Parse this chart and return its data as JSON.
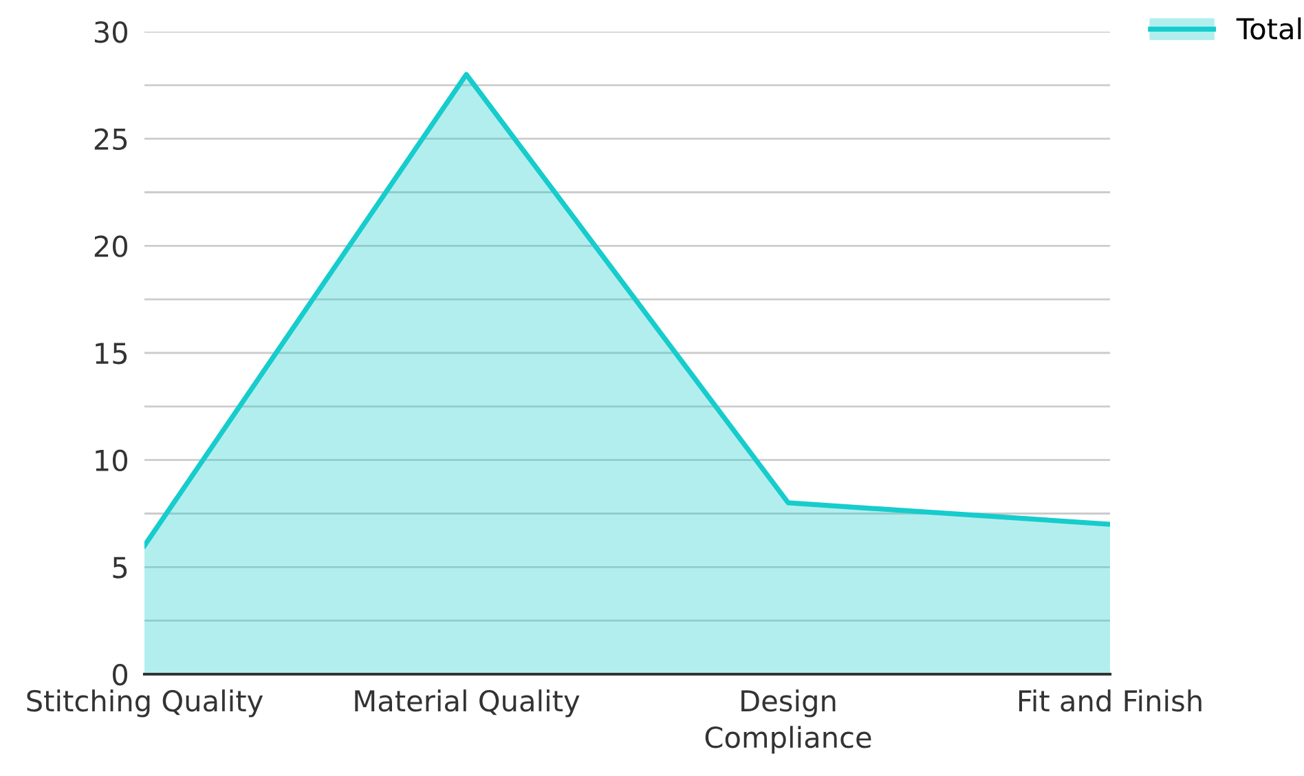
{
  "chart_data": {
    "type": "area",
    "categories": [
      "Stitching Quality",
      "Material Quality",
      "Design\nCompliance",
      "Fit and Finish"
    ],
    "series": [
      {
        "name": "Total",
        "color": "#17cccc",
        "values": [
          6,
          28,
          8,
          7
        ]
      }
    ],
    "ylim": [
      0,
      30
    ],
    "yticks": [
      0,
      {
        "value": 2.5,
        "label": null
      },
      5,
      {
        "value": 7.5,
        "label": null
      },
      10,
      {
        "value": 12.5,
        "label": null
      },
      15,
      {
        "value": 17.5,
        "label": null
      },
      20,
      {
        "value": 22.5,
        "label": null
      },
      25,
      {
        "value": 27.5,
        "label": null
      },
      30
    ],
    "grid": "y",
    "legend": "top right",
    "marker": "none",
    "line_style": "solid"
  }
}
